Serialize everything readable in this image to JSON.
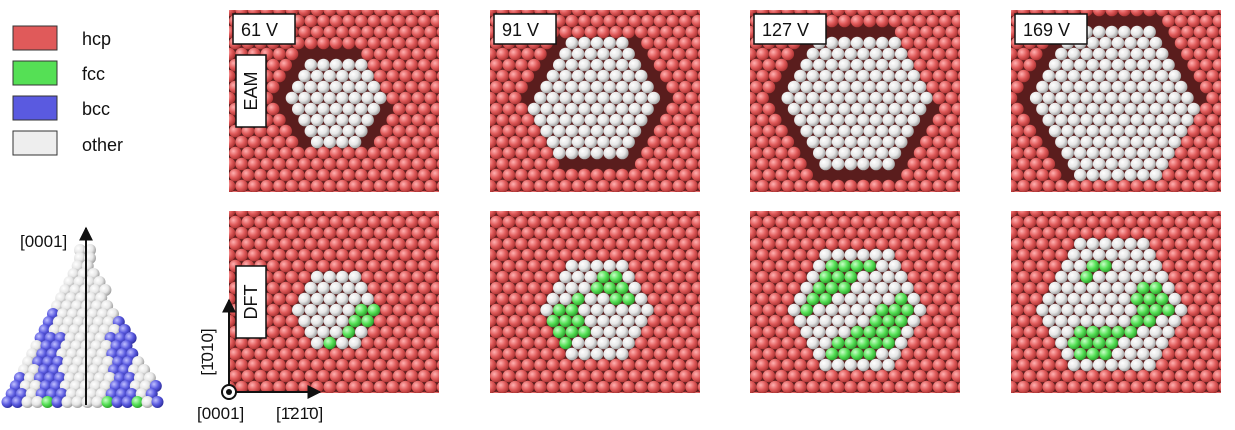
{
  "legend": {
    "items": [
      {
        "label": "hcp",
        "color": "#e05a5a"
      },
      {
        "label": "fcc",
        "color": "#55e055"
      },
      {
        "label": "bcc",
        "color": "#5a5ae0"
      },
      {
        "label": "other",
        "color": "#eeeeee"
      }
    ]
  },
  "rows": [
    {
      "method": "EAM",
      "cluster": "outline"
    },
    {
      "method": "DFT",
      "cluster": "doped"
    }
  ],
  "columns": [
    {
      "voltage": "61 V",
      "size": 0.55
    },
    {
      "voltage": "91 V",
      "size": 0.75
    },
    {
      "voltage": "127 V",
      "size": 0.85
    },
    {
      "voltage": "169 V",
      "size": 0.95
    }
  ],
  "axes": {
    "tip_axis": "[0001]",
    "vertical_axis": "[1̄010]",
    "origin_axis": "[0001]",
    "horizontal_axis": "[1̄21̄0]"
  },
  "colors": {
    "hcp": "#e05a5a",
    "fcc": "#55e055",
    "bcc": "#5a5ae0",
    "other": "#eeeeee",
    "gap": "#1a1a1a"
  }
}
